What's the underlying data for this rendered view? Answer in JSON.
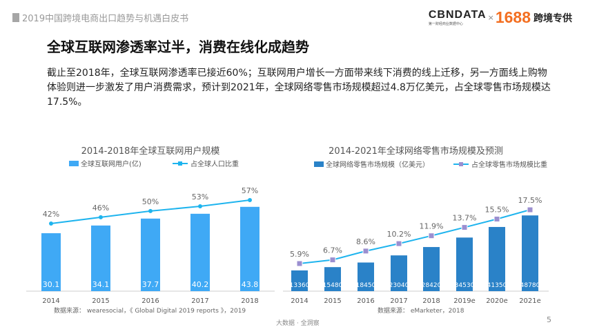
{
  "header": {
    "report_title": "2019中国跨境电商出口趋势与机遇白皮书",
    "logo_cbndata": "CBNDATA",
    "logo_cbndata_sub": "第一财经商业数据中心",
    "logo_x": "×",
    "logo_1688": "1688",
    "logo_brand2": "跨境专供"
  },
  "title": "全球互联网渗透率过半，消费在线化成趋势",
  "intro": "截止至2018年，全球互联网渗透率已接近60%；互联网用户增长一方面带来线下消费的线上迁移，另一方面线上购物体验则进一步激发了用户消费需求，预计到2021年，全球网络零售市场规模超过4.8万亿美元，占全球零售市场规模达17.5%。",
  "footer": {
    "text": "大数据 · 全洞察",
    "page": "5"
  },
  "chart_data": [
    {
      "type": "bar+line",
      "title": "2014-2018年全球互联网用户规模",
      "categories": [
        "2014",
        "2015",
        "2016",
        "2017",
        "2018"
      ],
      "series": [
        {
          "name": "全球互联网用户(亿)",
          "type": "bar",
          "values": [
            30.1,
            34.1,
            37.7,
            40.2,
            43.8
          ],
          "labels": [
            "30.1",
            "34.1",
            "37.7",
            "40.2",
            "43.8"
          ],
          "color": "#3fa9f5"
        },
        {
          "name": "占全球人口比重",
          "type": "line",
          "values": [
            42,
            46,
            50,
            53,
            57
          ],
          "labels": [
            "42%",
            "46%",
            "50%",
            "53%",
            "57%"
          ],
          "color": "#1eb4ee"
        }
      ],
      "source": "数据来源： wearesocial，《 Global Digital 2019 reports 》，2019"
    },
    {
      "type": "bar+line",
      "title": "2014-2021年全球网络零售市场规模及预测",
      "categories": [
        "2014",
        "2015",
        "2016",
        "2017",
        "2018",
        "2019e",
        "2020e",
        "2021e"
      ],
      "series": [
        {
          "name": "全球网络零售市场规模（亿美元）",
          "type": "bar",
          "values": [
            13360,
            15480,
            18450,
            23040,
            28420,
            34530,
            41350,
            48780
          ],
          "labels": [
            "13360",
            "15480",
            "18450",
            "23040",
            "28420",
            "34530",
            "41350",
            "48780"
          ],
          "color": "#2a82c8"
        },
        {
          "name": "占全球零售市场规模比重",
          "type": "line",
          "values": [
            5.9,
            6.7,
            8.6,
            10.2,
            11.9,
            13.7,
            15.5,
            17.5
          ],
          "labels": [
            "5.9%",
            "6.7%",
            "8.6%",
            "10.2%",
            "11.9%",
            "13.7%",
            "15.5%",
            "17.5%"
          ],
          "color": "#1eb4ee",
          "marker_color": "#9b8fd0"
        }
      ],
      "source": "数据来源： eMarketer，2018"
    }
  ]
}
